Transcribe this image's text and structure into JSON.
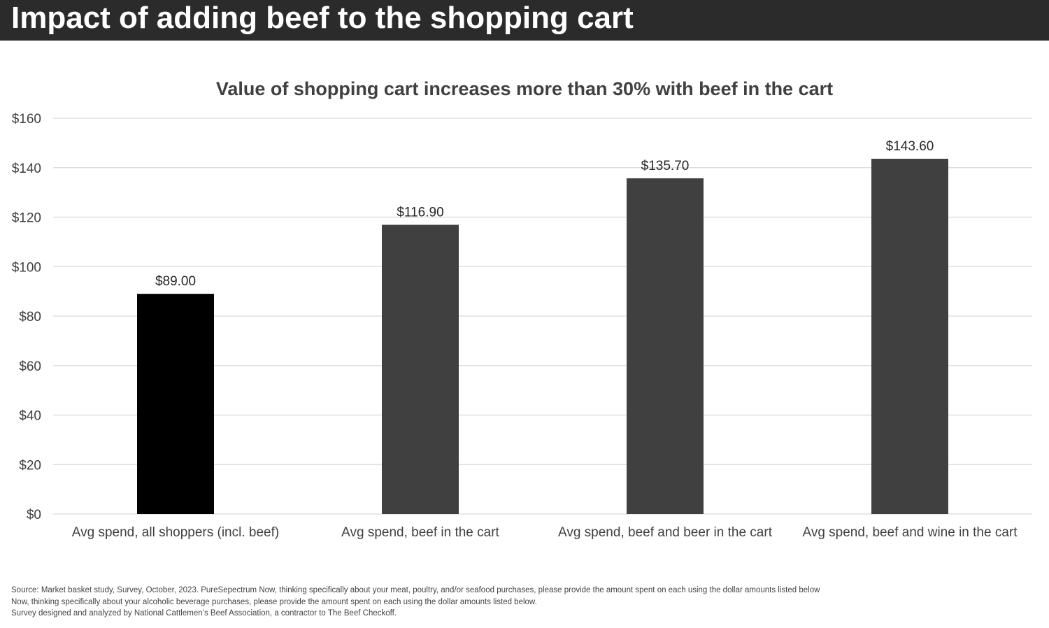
{
  "header": {
    "title": "Impact of adding beef to the shopping cart"
  },
  "colors": {
    "header_bg": "#2b2b2b",
    "bar_highlight": "#000000",
    "bar_default": "#404040",
    "grid": "#d9d9d9"
  },
  "chart_data": {
    "type": "bar",
    "title": "Value of shopping cart increases more than 30% with beef in the cart",
    "categories": [
      "Avg spend, all shoppers (incl. beef)",
      "Avg spend, beef in the cart",
      "Avg spend, beef and beer in the cart",
      "Avg spend, beef and wine in the cart"
    ],
    "values": [
      89.0,
      116.9,
      135.7,
      143.6
    ],
    "data_labels": [
      "$89.00",
      "$116.90",
      "$135.70",
      "$143.60"
    ],
    "bar_colors": [
      "#000000",
      "#404040",
      "#404040",
      "#404040"
    ],
    "ylim": [
      0,
      160
    ],
    "yticks": [
      0,
      20,
      40,
      60,
      80,
      100,
      120,
      140,
      160
    ],
    "ytick_labels": [
      "$0",
      "$20",
      "$40",
      "$60",
      "$80",
      "$100",
      "$120",
      "$140",
      "$160"
    ],
    "grid": true,
    "xlabel": "",
    "ylabel": ""
  },
  "footnote": {
    "lines": [
      "Source: Market basket study, Survey, October, 2023. PureSepectrum  Now, thinking specifically about your meat, poultry, and/or seafood purchases, please provide the amount spent on each using the dollar amounts listed below",
      "Now, thinking specifically about your alcoholic beverage purchases, please provide the amount spent on each using the dollar amounts listed below.",
      "Survey designed and analyzed by National Cattlemen’s Beef Association, a contractor to The Beef Checkoff."
    ]
  }
}
